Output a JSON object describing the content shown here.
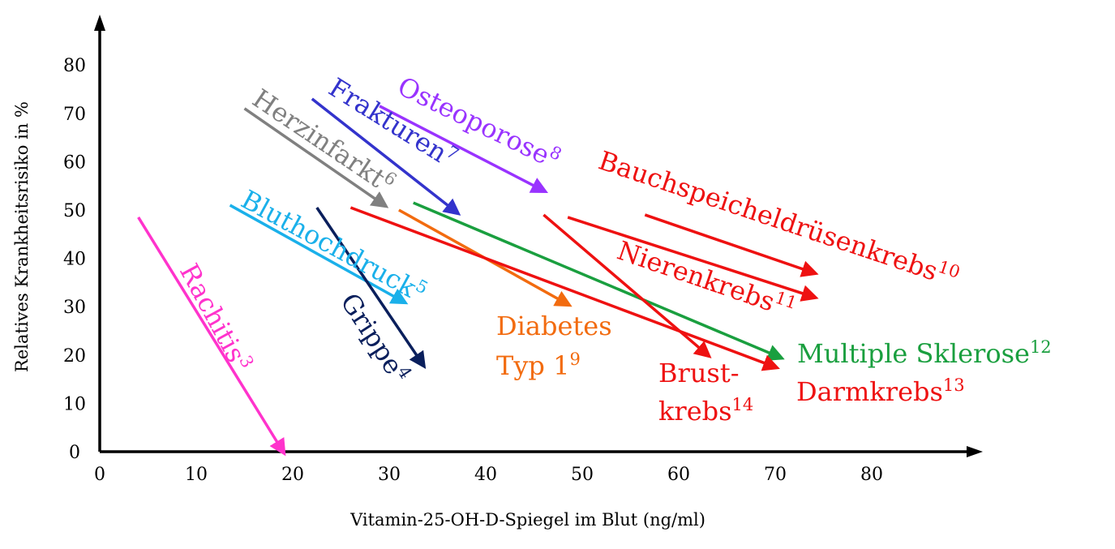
{
  "chart_data": {
    "type": "line",
    "title": "",
    "xlabel": "Vitamin-25-OH-D-Spiegel im Blut (ng/ml)",
    "ylabel": "Relatives Krankheitsrisiko in %",
    "x_ticks": [
      "0",
      "10",
      "20",
      "30",
      "40",
      "50",
      "60",
      "70",
      "80"
    ],
    "y_ticks": [
      "0",
      "10",
      "20",
      "30",
      "40",
      "50",
      "60",
      "70",
      "80"
    ],
    "xlim": [
      0,
      89
    ],
    "ylim": [
      0,
      90
    ],
    "grid": false,
    "series": [
      {
        "name": "Rachitis",
        "ref": "3",
        "color": "#ff33cc",
        "x": [
          4,
          19
        ],
        "y": [
          48.5,
          0
        ]
      },
      {
        "name": "Bluthochdruck",
        "ref": "5",
        "color": "#1ab0ea",
        "x": [
          13.5,
          31.5
        ],
        "y": [
          51,
          31
        ]
      },
      {
        "name": "Grippe",
        "ref": "4",
        "color": "#0a1f5c",
        "x": [
          22.5,
          33.5
        ],
        "y": [
          50.5,
          18
        ]
      },
      {
        "name": "Herzinfarkt",
        "ref": "6",
        "color": "#808080",
        "x": [
          15,
          29.5
        ],
        "y": [
          71,
          51
        ]
      },
      {
        "name": "Frakturen",
        "ref": "7",
        "color": "#3333cc",
        "x": [
          22,
          37
        ],
        "y": [
          73,
          49.5
        ]
      },
      {
        "name": "Osteoporose",
        "ref": "8",
        "color": "#9933ff",
        "x": [
          29,
          46
        ],
        "y": [
          71.5,
          54
        ]
      },
      {
        "name": "Diabetes Typ 1",
        "ref": "9",
        "color": "#f26b0f",
        "x": [
          31,
          48.5
        ],
        "y": [
          50,
          30.5
        ]
      },
      {
        "name": "Multiple Sklerose",
        "ref": "12",
        "color": "#1a9f3f",
        "x": [
          32.5,
          70.5
        ],
        "y": [
          51.5,
          19.5
        ]
      },
      {
        "name": "Darmkrebs",
        "ref": "13",
        "color": "#ee1111",
        "x": [
          26,
          70
        ],
        "y": [
          50.5,
          17.5
        ]
      },
      {
        "name": "Brustkrebs",
        "ref": "14",
        "color": "#ee1111",
        "x": [
          46,
          63
        ],
        "y": [
          49,
          20
        ]
      },
      {
        "name": "Nierenkrebs",
        "ref": "11",
        "color": "#ee1111",
        "x": [
          48.5,
          74
        ],
        "y": [
          48.5,
          32
        ]
      },
      {
        "name": "Bauchspeicheldrüsenkrebs",
        "ref": "10",
        "color": "#ee1111",
        "x": [
          56.5,
          74
        ],
        "y": [
          49,
          37
        ]
      }
    ],
    "labels": [
      {
        "series": "Rachitis",
        "lines": [
          "Rachitis"
        ]
      },
      {
        "series": "Bluthochdruck",
        "lines": [
          "Bluthochdruck"
        ]
      },
      {
        "series": "Grippe",
        "lines": [
          "Grippe"
        ]
      },
      {
        "series": "Herzinfarkt",
        "lines": [
          "Herzinfarkt"
        ]
      },
      {
        "series": "Frakturen",
        "lines": [
          "Frakturen"
        ]
      },
      {
        "series": "Osteoporose",
        "lines": [
          "Osteoporose"
        ]
      },
      {
        "series": "Diabetes Typ 1",
        "lines": [
          "Diabetes",
          "Typ 1"
        ]
      },
      {
        "series": "Multiple Sklerose",
        "lines": [
          "Multiple Sklerose"
        ]
      },
      {
        "series": "Darmkrebs",
        "lines": [
          "Darmkrebs"
        ]
      },
      {
        "series": "Brustkrebs",
        "lines": [
          "Brust-",
          "krebs"
        ]
      },
      {
        "series": "Nierenkrebs",
        "lines": [
          "Nierenkrebs"
        ]
      },
      {
        "series": "Bauchspeicheldrüsenkrebs",
        "lines": [
          "Bauchspeicheldrüsenkrebs"
        ]
      }
    ]
  }
}
